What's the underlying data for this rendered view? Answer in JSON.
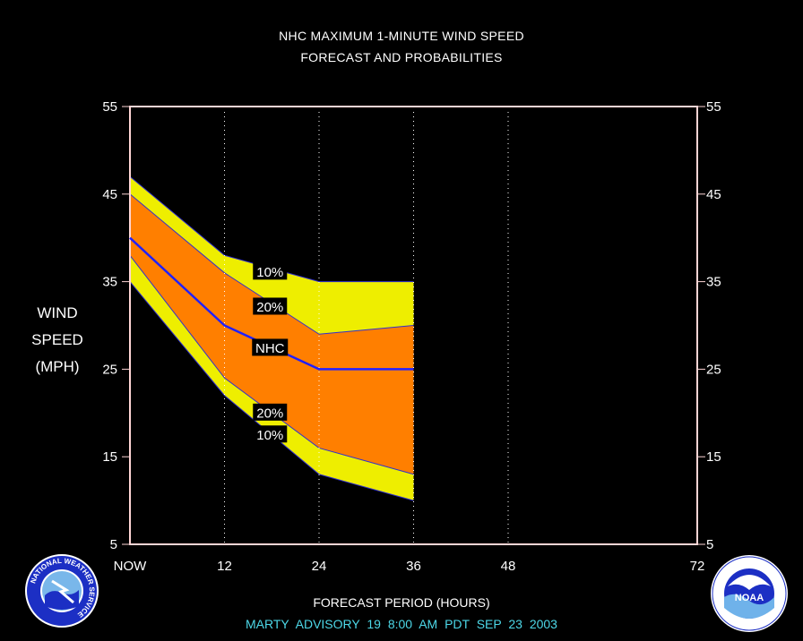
{
  "chart_data": {
    "type": "area",
    "title": "NHC MAXIMUM 1-MINUTE WIND SPEED",
    "subtitle": "FORECAST AND PROBABILITIES",
    "ylabel_lines": [
      "WIND",
      "SPEED",
      "(MPH)"
    ],
    "xlabel": "FORECAST PERIOD (HOURS)",
    "footer": "MARTY    ADVISORY  19  8:00  AM  PDT  SEP  23  2003",
    "ylim": [
      5,
      55
    ],
    "xlim": [
      0,
      72
    ],
    "y_ticks": [
      5,
      15,
      25,
      35,
      45,
      55
    ],
    "x_ticks": [
      {
        "value": 0,
        "label": "NOW"
      },
      {
        "value": 12,
        "label": "12"
      },
      {
        "value": 24,
        "label": "24"
      },
      {
        "value": 36,
        "label": "36"
      },
      {
        "value": 48,
        "label": "48"
      },
      {
        "value": 72,
        "label": "72"
      }
    ],
    "grid_x": [
      12,
      24,
      36,
      48
    ],
    "x": [
      0,
      12,
      24,
      36
    ],
    "series": [
      {
        "name": "10%",
        "role": "upper_outer",
        "values": [
          47,
          38,
          35,
          35
        ]
      },
      {
        "name": "20%",
        "role": "upper_inner",
        "values": [
          45,
          36,
          29,
          30
        ]
      },
      {
        "name": "NHC",
        "role": "forecast",
        "values": [
          40,
          30,
          25,
          25
        ]
      },
      {
        "name": "20%",
        "role": "lower_inner",
        "values": [
          38,
          24,
          16,
          13
        ]
      },
      {
        "name": "10%",
        "role": "lower_outer",
        "values": [
          35,
          22,
          13,
          10
        ]
      }
    ],
    "band_labels": [
      {
        "text": "10%",
        "x": 18,
        "y": 36.2
      },
      {
        "text": "20%",
        "x": 18,
        "y": 32.2
      },
      {
        "text": "NHC",
        "x": 18,
        "y": 27.5
      },
      {
        "text": "20%",
        "x": 18,
        "y": 20.1
      },
      {
        "text": "10%",
        "x": 18,
        "y": 17.6
      }
    ],
    "colors": {
      "outer_band": "#eeee00",
      "inner_band": "#ff7f00",
      "forecast_line": "#2020ff",
      "frame": "#ffd6d6",
      "grid": "#ffffff",
      "label_bg": "#000000"
    }
  },
  "logos": {
    "nws": {
      "icon": "nws-logo-icon",
      "text": "NATIONAL WEATHER SERVICE"
    },
    "noaa": {
      "icon": "noaa-logo-icon",
      "text": "NOAA"
    }
  }
}
